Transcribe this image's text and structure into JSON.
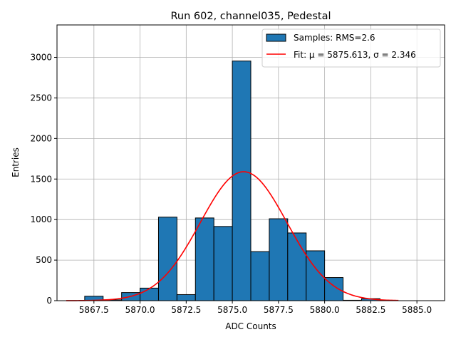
{
  "chart_data": {
    "type": "bar",
    "title": "Run 602, channel035, Pedestal",
    "xlabel": "ADC Counts",
    "ylabel": "Entries",
    "xlim": [
      5865.5,
      5886.5
    ],
    "ylim": [
      0,
      3400
    ],
    "xticks": [
      5867.5,
      5870.0,
      5872.5,
      5875.0,
      5877.5,
      5880.0,
      5882.5,
      5885.0
    ],
    "yticks": [
      0,
      500,
      1000,
      1500,
      2000,
      2500,
      3000
    ],
    "grid": true,
    "legend_position": "top-right",
    "bar_color": "#1f77b4",
    "fit_color": "#ff0000",
    "bins": {
      "edges": [
        5866.0,
        5867.0,
        5868.0,
        5869.0,
        5870.0,
        5871.0,
        5872.0,
        5873.0,
        5874.0,
        5875.0,
        5876.0,
        5877.0,
        5878.0,
        5879.0,
        5880.0,
        5881.0,
        5882.0,
        5883.0,
        5884.0,
        5885.0,
        5886.0
      ],
      "counts": [
        0,
        55,
        10,
        100,
        155,
        1030,
        75,
        1020,
        915,
        2955,
        605,
        1010,
        835,
        615,
        285,
        5,
        25,
        0,
        0,
        0
      ]
    },
    "series": [
      {
        "name": "Samples: RMS=2.6",
        "kind": "histogram"
      },
      {
        "name": "Fit: μ = 5875.613, σ = 2.346",
        "kind": "gaussian",
        "mu": 5875.613,
        "sigma": 2.346,
        "amplitude": 1590,
        "x_range": [
          5866.0,
          5884.0
        ]
      }
    ]
  }
}
